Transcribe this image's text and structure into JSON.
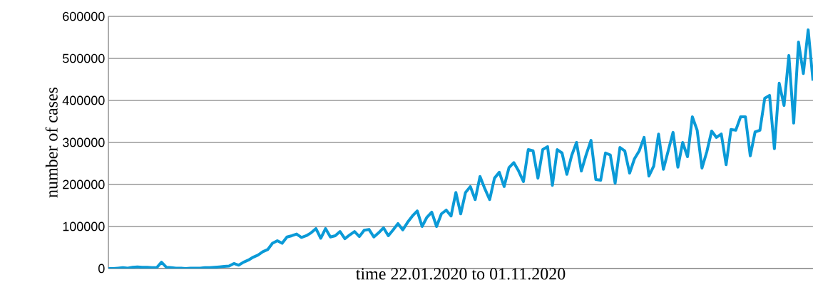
{
  "chart_data": {
    "type": "line",
    "xlabel": "time 22.01.2020 to 01.11.2020",
    "ylabel": "number of cases",
    "categories": [
      null,
      null,
      null,
      null,
      null,
      null,
      null,
      null,
      null,
      null,
      null,
      null,
      null,
      null,
      null,
      null,
      null,
      null,
      null,
      null,
      null,
      null,
      null,
      null,
      null,
      null,
      null,
      null,
      null,
      null,
      null,
      null,
      null,
      null,
      null,
      null,
      null,
      null,
      null,
      null,
      null,
      null,
      null,
      null,
      null,
      null,
      null,
      null,
      null,
      null,
      null,
      null,
      null,
      null,
      null,
      null,
      null,
      null,
      null,
      null,
      null,
      null,
      null,
      null,
      null,
      null,
      null,
      null,
      null,
      null,
      null,
      null,
      null,
      null,
      null,
      null,
      null,
      null,
      null,
      null,
      null,
      null,
      null,
      null,
      null,
      null,
      null,
      null,
      null,
      null,
      null,
      null,
      null,
      null,
      null,
      null,
      null,
      null,
      null,
      null,
      null,
      null,
      null,
      null,
      null,
      null,
      null,
      null,
      null,
      null,
      null,
      null,
      null,
      null,
      null,
      null,
      null,
      null,
      null,
      null,
      null,
      null,
      null,
      null,
      null,
      null,
      null,
      null,
      null,
      null,
      null,
      null,
      null,
      null,
      null,
      null,
      null,
      null,
      null,
      null,
      null,
      null,
      null,
      null,
      null,
      null,
      null
    ],
    "values": [
      0,
      0,
      1000,
      2000,
      1000,
      3000,
      4000,
      3000,
      3000,
      2000,
      2000,
      15000,
      3000,
      2000,
      1000,
      1000,
      0,
      1000,
      1000,
      1000,
      2000,
      2000,
      3000,
      4000,
      5000,
      6000,
      12000,
      8000,
      15000,
      20000,
      27000,
      32000,
      40000,
      45000,
      60000,
      66000,
      60000,
      75000,
      78000,
      82000,
      74000,
      78000,
      85000,
      95000,
      72000,
      95000,
      75000,
      78000,
      88000,
      71000,
      80000,
      88000,
      76000,
      91000,
      93000,
      75000,
      85000,
      97000,
      78000,
      92000,
      107000,
      92000,
      110000,
      125000,
      137000,
      100000,
      122000,
      134000,
      100000,
      130000,
      139000,
      125000,
      181000,
      130000,
      181000,
      195000,
      164000,
      219000,
      190000,
      164000,
      215000,
      229000,
      195000,
      240000,
      252000,
      232000,
      207000,
      283000,
      280000,
      215000,
      283000,
      290000,
      198000,
      283000,
      275000,
      224000,
      269000,
      300000,
      232000,
      271000,
      305000,
      212000,
      210000,
      275000,
      270000,
      203000,
      288000,
      280000,
      227000,
      261000,
      280000,
      312000,
      220000,
      244000,
      320000,
      236000,
      280000,
      324000,
      241000,
      300000,
      266000,
      361000,
      329000,
      239000,
      278000,
      327000,
      312000,
      320000,
      247000,
      331000,
      329000,
      361000,
      361000,
      268000,
      325000,
      329000,
      405000,
      412000,
      285000,
      441000,
      388000,
      507000,
      346000,
      539000,
      464000,
      568000,
      447000
    ],
    "color": "#0a9ad7",
    "ylim": [
      0,
      600000
    ],
    "yticks": [
      0,
      100000,
      200000,
      300000,
      400000,
      500000,
      600000
    ],
    "grid": "y"
  }
}
